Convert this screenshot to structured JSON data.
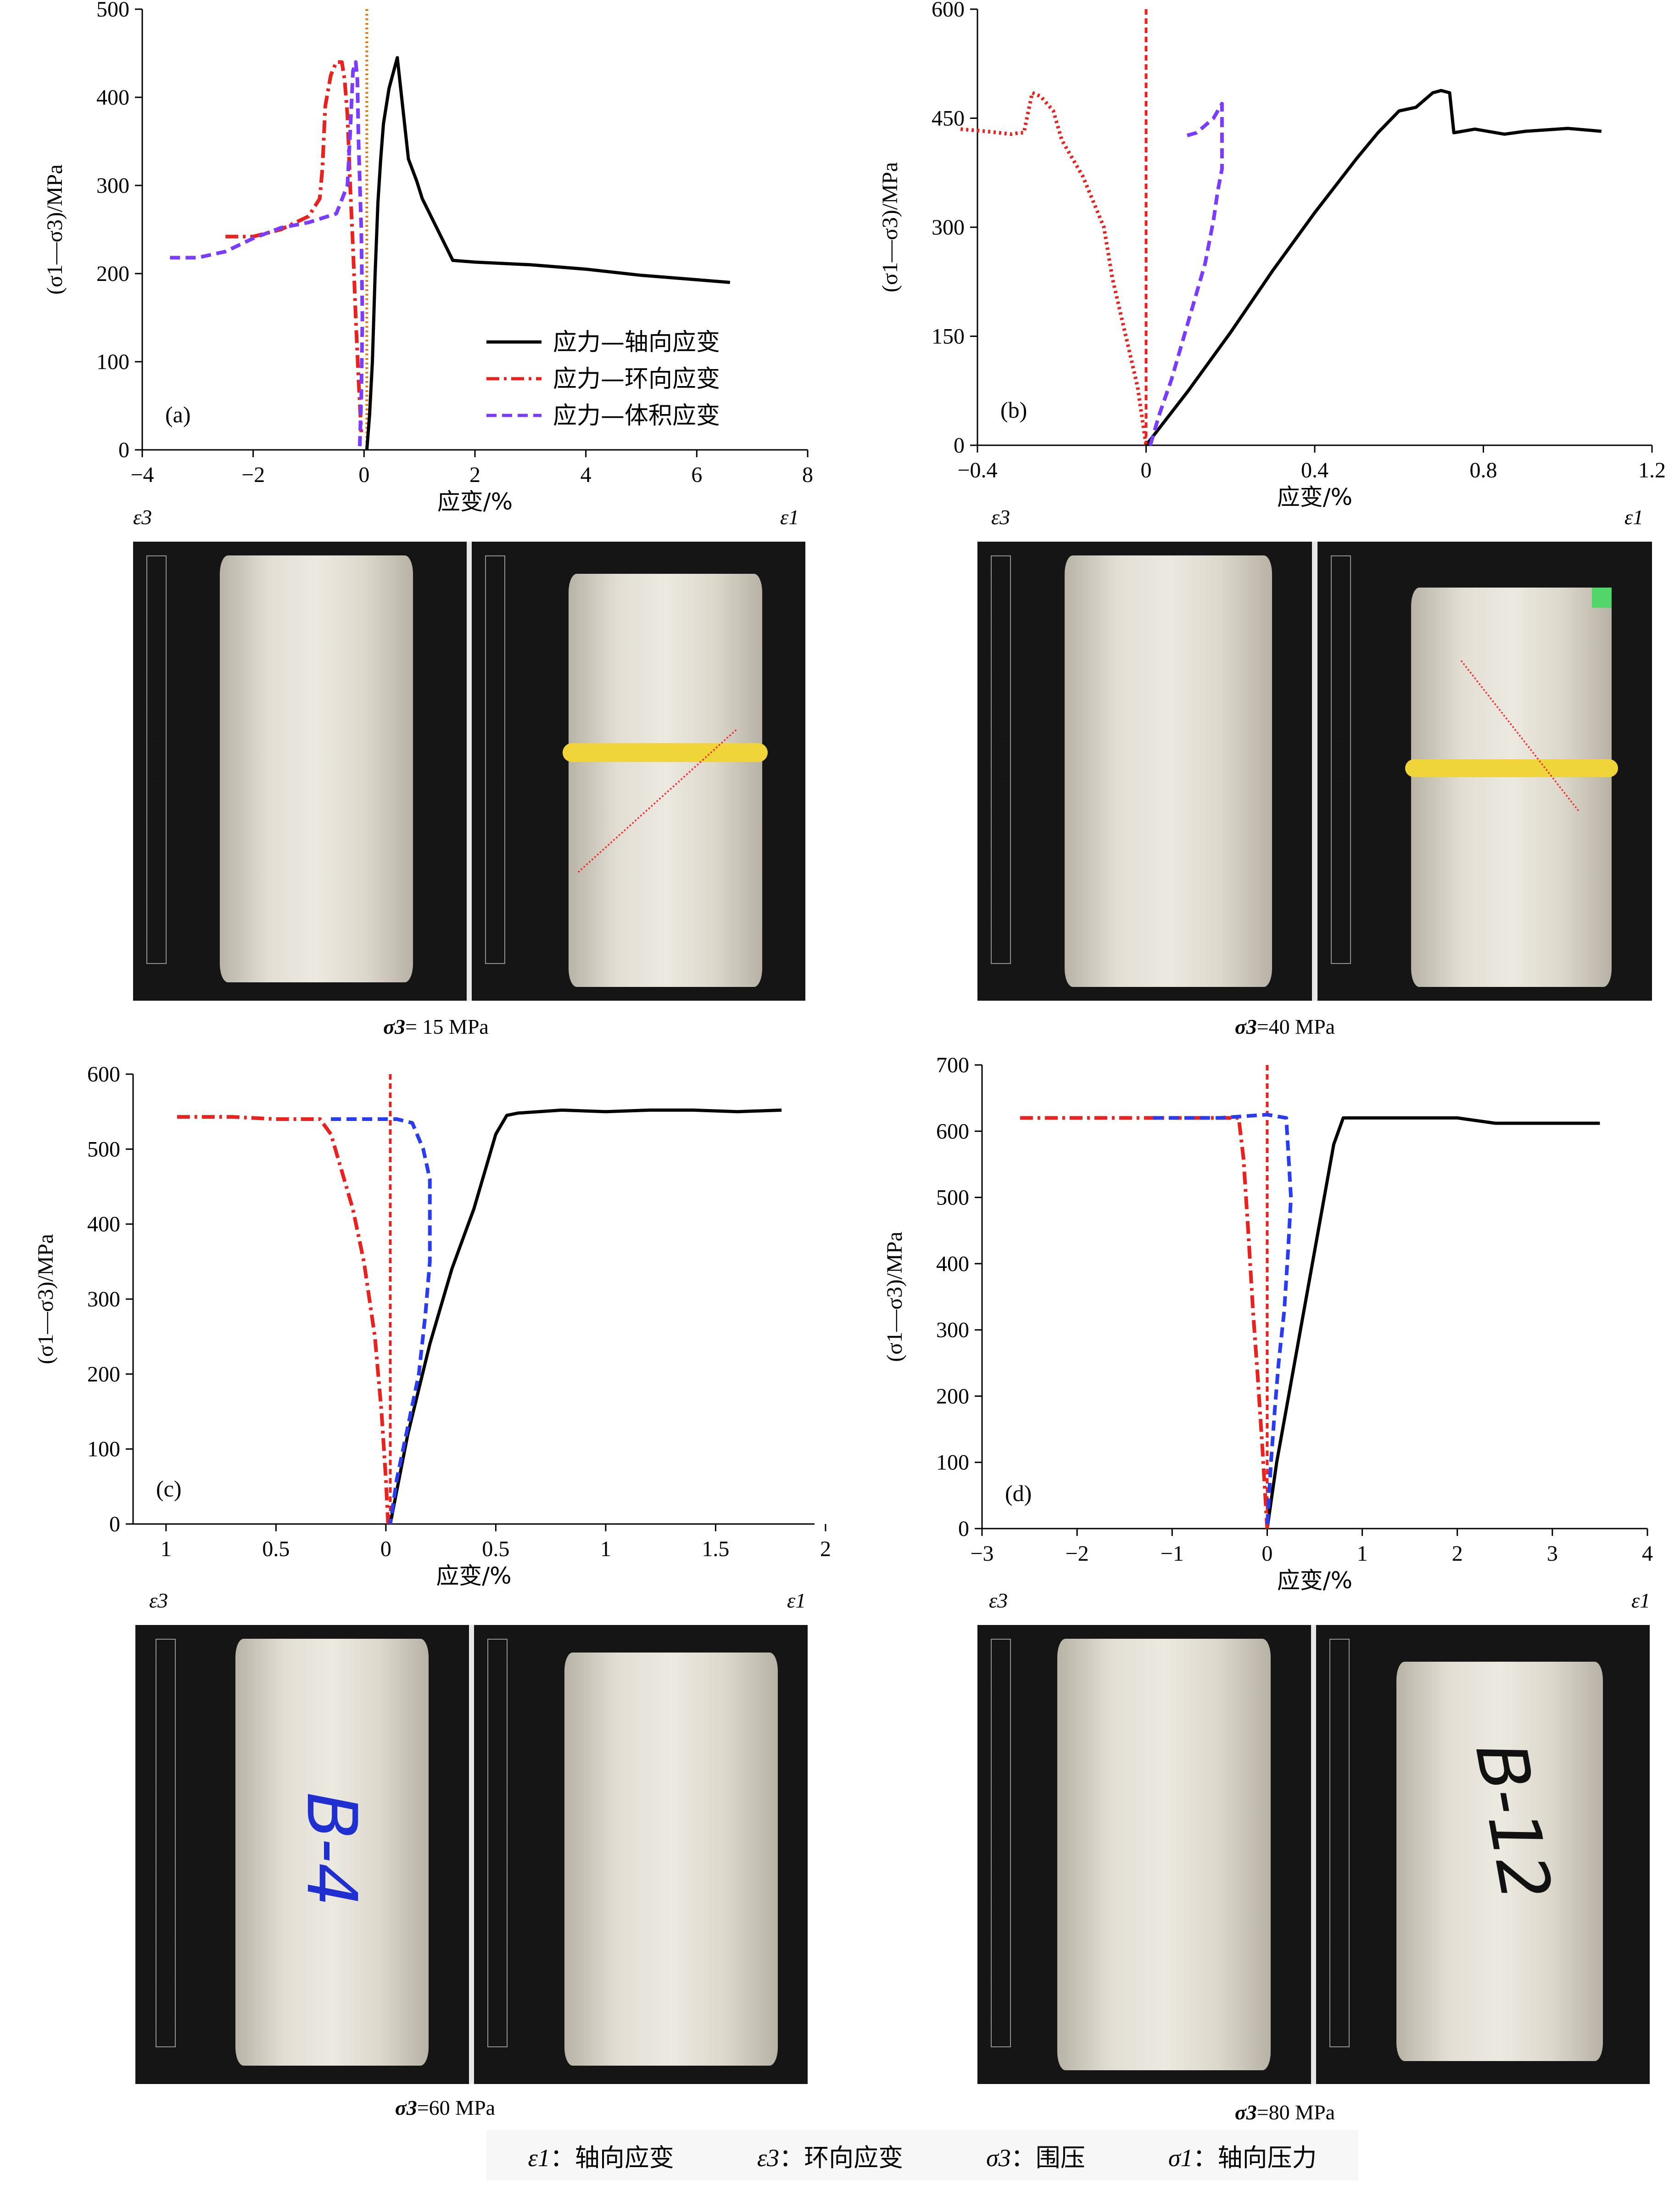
{
  "legend": {
    "axial": "应力—轴向应变",
    "hoop": "应力—环向应变",
    "volumetric": "应力—体积应变"
  },
  "colors": {
    "axial": "#000000",
    "hoop": "#e8231f",
    "volumetric": "#7a3cff",
    "volumetric_blue": "#2a3cf0",
    "vline": "#e8231f",
    "vline_orange": "#e07a1a"
  },
  "axis_text": {
    "xlabel": "应变/%",
    "ylabel": "(σ1—σ3)/MPa"
  },
  "eps_labels": {
    "left": "ε3",
    "right": "ε1"
  },
  "captions": [
    {
      "sym": "σ3",
      "text": "= 15 MPa"
    },
    {
      "sym": "σ3",
      "text": "=40 MPa"
    },
    {
      "sym": "σ3",
      "text": "=60 MPa"
    },
    {
      "sym": "σ3",
      "text": "=80 MPa"
    }
  ],
  "photo_marks": {
    "c": "B-4",
    "d": "B-12"
  },
  "footer": [
    {
      "sym": "ε1",
      "text": "：轴向应变"
    },
    {
      "sym": "ε3",
      "text": "：环向应变"
    },
    {
      "sym": "σ3",
      "text": "：围压"
    },
    {
      "sym": "σ1",
      "text": "：轴向压力"
    }
  ],
  "chart_data": [
    {
      "panel": "(a)",
      "type": "line",
      "xlim": [
        -4,
        8
      ],
      "ylim": [
        0,
        500
      ],
      "xticks": [
        -4,
        -2,
        0,
        2,
        4,
        6,
        8
      ],
      "yticks": [
        0,
        100,
        200,
        300,
        400,
        500
      ],
      "xlabel": "应变/%",
      "ylabel": "(σ1—σ3)/MPa",
      "legend_position": "bottom-right",
      "vline_x": 0.05,
      "series": [
        {
          "name": "应力—轴向应变",
          "key": "axial",
          "style": "solid",
          "x": [
            0.05,
            0.1,
            0.15,
            0.2,
            0.25,
            0.3,
            0.35,
            0.45,
            0.6,
            0.8,
            0.95,
            1.05,
            1.6,
            2.0,
            3.0,
            4.0,
            5.0,
            6.0,
            6.6
          ],
          "y": [
            0,
            40,
            100,
            200,
            280,
            330,
            370,
            410,
            445,
            330,
            305,
            285,
            215,
            213,
            210,
            205,
            198,
            193,
            190
          ]
        },
        {
          "name": "应力—环向应变",
          "key": "hoop",
          "style": "dashdot",
          "x": [
            -2.5,
            -2.0,
            -1.5,
            -1.0,
            -0.8,
            -0.75,
            -0.7,
            -0.6,
            -0.5,
            -0.4,
            -0.35,
            -0.3,
            -0.25,
            -0.2,
            -0.15,
            -0.1,
            -0.05
          ],
          "y": [
            242,
            242,
            250,
            265,
            285,
            320,
            390,
            425,
            440,
            440,
            420,
            380,
            300,
            230,
            150,
            80,
            20
          ]
        },
        {
          "name": "应力—体积应变",
          "key": "volumetric",
          "style": "dashed",
          "x": [
            -3.5,
            -3.0,
            -2.5,
            -2.0,
            -1.5,
            -1.0,
            -0.5,
            -0.3,
            -0.25,
            -0.2,
            -0.15,
            -0.12,
            -0.1,
            -0.05,
            -0.03,
            -0.05,
            -0.08
          ],
          "y": [
            218,
            218,
            225,
            240,
            252,
            258,
            268,
            300,
            360,
            430,
            440,
            420,
            350,
            250,
            150,
            60,
            0
          ]
        }
      ]
    },
    {
      "panel": "(b)",
      "type": "line",
      "xlim": [
        -0.4,
        1.2
      ],
      "ylim": [
        0,
        600
      ],
      "xticks": [
        -0.4,
        0,
        0.4,
        0.8,
        1.2
      ],
      "yticks": [
        0,
        150,
        300,
        450,
        600
      ],
      "xlabel": "应变/%",
      "ylabel": "(σ1—σ3)/MPa",
      "vline_x": 0,
      "series": [
        {
          "name": "应力—轴向应变",
          "key": "axial",
          "style": "solid",
          "x": [
            0,
            0.1,
            0.2,
            0.3,
            0.4,
            0.5,
            0.55,
            0.6,
            0.64,
            0.68,
            0.7,
            0.72,
            0.73,
            0.78,
            0.85,
            0.9,
            1.0,
            1.08
          ],
          "y": [
            0,
            75,
            155,
            240,
            320,
            395,
            430,
            460,
            465,
            485,
            488,
            485,
            430,
            435,
            428,
            432,
            436,
            432
          ]
        },
        {
          "name": "应力—环向应变",
          "key": "hoop",
          "style": "dotted",
          "x": [
            -0.44,
            -0.38,
            -0.32,
            -0.3,
            -0.29,
            -0.27,
            -0.25,
            -0.22,
            -0.2,
            -0.18,
            -0.15,
            -0.1,
            -0.08,
            -0.06,
            -0.04,
            -0.02,
            0
          ],
          "y": [
            435,
            432,
            428,
            430,
            430,
            485,
            480,
            460,
            420,
            400,
            370,
            300,
            230,
            180,
            130,
            80,
            0
          ]
        },
        {
          "name": "应力—体积应变",
          "key": "volumetric",
          "style": "dashed",
          "x": [
            0.01,
            0.03,
            0.06,
            0.09,
            0.12,
            0.14,
            0.16,
            0.17,
            0.18,
            0.18,
            0.16,
            0.12,
            0.09
          ],
          "y": [
            0,
            40,
            90,
            150,
            210,
            250,
            310,
            350,
            380,
            470,
            450,
            430,
            425
          ]
        }
      ]
    },
    {
      "panel": "(c)",
      "type": "line",
      "xlim": [
        -1.15,
        1.95
      ],
      "ylim": [
        0,
        600
      ],
      "xticks": [
        -1,
        -0.5,
        0,
        0.5,
        1,
        1.5,
        2
      ],
      "xtick_labels": [
        "1",
        "0.5",
        "0",
        "0.5",
        "1",
        "1.5",
        "2"
      ],
      "yticks": [
        0,
        100,
        200,
        300,
        400,
        500,
        600
      ],
      "xlabel": "应变/%",
      "ylabel": "(σ1—σ3)/MPa",
      "vline_x": 0.02,
      "series": [
        {
          "name": "应力—轴向应变",
          "key": "axial",
          "style": "solid",
          "x": [
            0.02,
            0.06,
            0.1,
            0.15,
            0.2,
            0.25,
            0.3,
            0.35,
            0.4,
            0.45,
            0.5,
            0.55,
            0.6,
            0.8,
            1.0,
            1.2,
            1.4,
            1.6,
            1.8
          ],
          "y": [
            0,
            60,
            120,
            180,
            240,
            290,
            340,
            380,
            420,
            470,
            520,
            545,
            548,
            552,
            550,
            552,
            552,
            550,
            552
          ]
        },
        {
          "name": "应力—环向应变",
          "key": "hoop",
          "style": "dashdot",
          "x": [
            -0.95,
            -0.7,
            -0.5,
            -0.3,
            -0.25,
            -0.2,
            -0.15,
            -0.1,
            -0.05,
            -0.02,
            0.0,
            0.01
          ],
          "y": [
            543,
            543,
            540,
            540,
            520,
            470,
            420,
            350,
            250,
            150,
            60,
            0
          ]
        },
        {
          "name": "应力—体积应变",
          "key": "volumetric_blue",
          "style": "dashed",
          "x": [
            -0.25,
            -0.1,
            0.05,
            0.12,
            0.17,
            0.2,
            0.2,
            0.18,
            0.15,
            0.1,
            0.05,
            0.02
          ],
          "y": [
            540,
            540,
            540,
            535,
            500,
            460,
            350,
            280,
            200,
            130,
            60,
            0
          ]
        }
      ]
    },
    {
      "panel": "(d)",
      "type": "line",
      "xlim": [
        -3,
        4
      ],
      "ylim": [
        0,
        700
      ],
      "xticks": [
        -3,
        -2,
        -1,
        0,
        1,
        2,
        3,
        4
      ],
      "yticks": [
        0,
        100,
        200,
        300,
        400,
        500,
        600,
        700
      ],
      "xlabel": "应变/%",
      "ylabel": "(σ1—σ3)/MPa",
      "vline_x": 0,
      "series": [
        {
          "name": "应力—轴向应变",
          "key": "axial",
          "style": "solid",
          "x": [
            0,
            0.1,
            0.2,
            0.3,
            0.35,
            0.4,
            0.5,
            0.6,
            0.7,
            0.8,
            1.0,
            1.5,
            2.0,
            2.4,
            3.0,
            3.5
          ],
          "y": [
            0,
            100,
            180,
            260,
            300,
            340,
            420,
            500,
            580,
            620,
            620,
            620,
            620,
            612,
            612,
            612
          ]
        },
        {
          "name": "应力—环向应变",
          "key": "hoop",
          "style": "dashdot",
          "x": [
            -2.6,
            -2.0,
            -1.5,
            -1.0,
            -0.5,
            -0.3,
            -0.25,
            -0.2,
            -0.15,
            -0.1,
            -0.05,
            0
          ],
          "y": [
            620,
            620,
            620,
            620,
            620,
            620,
            560,
            450,
            330,
            230,
            120,
            0
          ]
        },
        {
          "name": "应力—体积应变",
          "key": "volumetric_blue",
          "style": "dashed",
          "x": [
            -1.2,
            -0.5,
            0,
            0.2,
            0.25,
            0.22,
            0.18,
            0.12,
            0.08,
            0.04,
            0.0
          ],
          "y": [
            620,
            620,
            625,
            620,
            500,
            420,
            330,
            250,
            180,
            100,
            0
          ]
        }
      ]
    }
  ]
}
